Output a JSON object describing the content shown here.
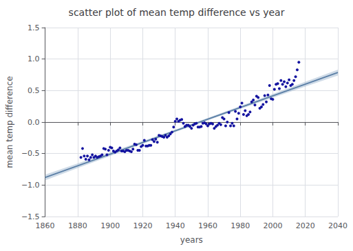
{
  "chart_data": {
    "type": "scatter",
    "title": "scatter plot of mean temp difference vs year",
    "xlabel": "years",
    "ylabel": "mean temp difference",
    "xlim": [
      1860,
      2040
    ],
    "ylim": [
      -1.5,
      1.5
    ],
    "xticks": [
      1860,
      1880,
      1900,
      1920,
      1940,
      1960,
      1980,
      2000,
      2020,
      2040
    ],
    "yticks": [
      {
        "value": -1.5,
        "label": "−1.5"
      },
      {
        "value": -1.0,
        "label": "−1.0"
      },
      {
        "value": -0.5,
        "label": "−0.5"
      },
      {
        "value": 0.0,
        "label": "0.0"
      },
      0.5,
      {
        "value": 1.0,
        "label": "1.0"
      },
      1.5
    ],
    "grid": true,
    "series": [
      {
        "type": "band",
        "color": "#a8bdd4",
        "x": [
          1860,
          1880,
          1900,
          1920,
          1940,
          1960,
          1980,
          2000,
          2020,
          2040
        ],
        "lower": [
          -0.9253,
          -0.7317,
          -0.5388,
          -0.3471,
          -0.1579,
          0.0271,
          0.2079,
          0.3863,
          0.5636,
          0.7404
        ],
        "upper": [
          -0.8344,
          -0.6576,
          -0.4803,
          -0.3017,
          -0.1205,
          0.0649,
          0.2544,
          0.4463,
          0.6393,
          0.8329
        ]
      },
      {
        "type": "line",
        "color": "#5b7fa6",
        "x": [
          1860,
          2040
        ],
        "values": [
          -0.8799,
          0.7867
        ]
      },
      {
        "type": "scatter",
        "color": "#1414a0",
        "x": [
          1882,
          1883,
          1884,
          1885,
          1886,
          1887,
          1888,
          1889,
          1890,
          1891,
          1892,
          1893,
          1894,
          1895,
          1896,
          1897,
          1898,
          1899,
          1900,
          1901,
          1902,
          1903,
          1904,
          1905,
          1906,
          1907,
          1908,
          1909,
          1910,
          1911,
          1912,
          1913,
          1914,
          1915,
          1916,
          1917,
          1918,
          1919,
          1920,
          1921,
          1922,
          1923,
          1924,
          1925,
          1926,
          1927,
          1928,
          1929,
          1930,
          1931,
          1932,
          1933,
          1934,
          1935,
          1936,
          1937,
          1938,
          1939,
          1940,
          1941,
          1942,
          1943,
          1944,
          1945,
          1946,
          1947,
          1948,
          1949,
          1950,
          1951,
          1952,
          1953,
          1954,
          1955,
          1956,
          1957,
          1958,
          1959,
          1960,
          1961,
          1962,
          1963,
          1964,
          1965,
          1966,
          1967,
          1968,
          1969,
          1970,
          1971,
          1972,
          1973,
          1974,
          1975,
          1976,
          1977,
          1978,
          1979,
          1980,
          1981,
          1982,
          1983,
          1984,
          1985,
          1986,
          1987,
          1988,
          1989,
          1990,
          1991,
          1992,
          1993,
          1994,
          1995,
          1996,
          1997,
          1998,
          1999,
          2000,
          2001,
          2002,
          2003,
          2004,
          2005,
          2006,
          2007,
          2008,
          2009,
          2010,
          2011,
          2012,
          2013,
          2014,
          2015,
          2016
        ],
        "values": [
          -0.56,
          -0.42,
          -0.54,
          -0.59,
          -0.54,
          -0.6,
          -0.56,
          -0.52,
          -0.56,
          -0.54,
          -0.56,
          -0.55,
          -0.54,
          -0.52,
          -0.42,
          -0.43,
          -0.52,
          -0.45,
          -0.4,
          -0.41,
          -0.46,
          -0.48,
          -0.46,
          -0.44,
          -0.41,
          -0.46,
          -0.46,
          -0.47,
          -0.45,
          -0.45,
          -0.46,
          -0.47,
          -0.43,
          -0.35,
          -0.36,
          -0.45,
          -0.45,
          -0.39,
          -0.37,
          -0.29,
          -0.38,
          -0.38,
          -0.37,
          -0.37,
          -0.28,
          -0.31,
          -0.27,
          -0.32,
          -0.21,
          -0.22,
          -0.23,
          -0.24,
          -0.21,
          -0.24,
          -0.22,
          -0.19,
          -0.16,
          -0.08,
          0.01,
          0.05,
          0.01,
          0.03,
          0.04,
          -0.02,
          -0.07,
          -0.05,
          -0.05,
          -0.07,
          -0.1,
          -0.05,
          -0.03,
          -0.02,
          -0.08,
          -0.08,
          -0.07,
          -0.02,
          -0.01,
          -0.03,
          -0.06,
          -0.03,
          -0.02,
          -0.03,
          -0.1,
          -0.07,
          -0.05,
          -0.02,
          -0.04,
          0.07,
          0.05,
          -0.06,
          0.0,
          0.15,
          -0.06,
          -0.02,
          -0.06,
          0.17,
          0.05,
          0.14,
          0.24,
          0.3,
          0.12,
          0.18,
          0.1,
          0.12,
          0.16,
          0.32,
          0.35,
          0.27,
          0.41,
          0.39,
          0.22,
          0.24,
          0.28,
          0.42,
          0.32,
          0.43,
          0.58,
          0.37,
          0.36,
          0.52,
          0.6,
          0.61,
          0.53,
          0.66,
          0.6,
          0.64,
          0.56,
          0.62,
          0.67,
          0.58,
          0.6,
          0.66,
          0.72,
          0.83,
          0.95
        ]
      }
    ]
  }
}
